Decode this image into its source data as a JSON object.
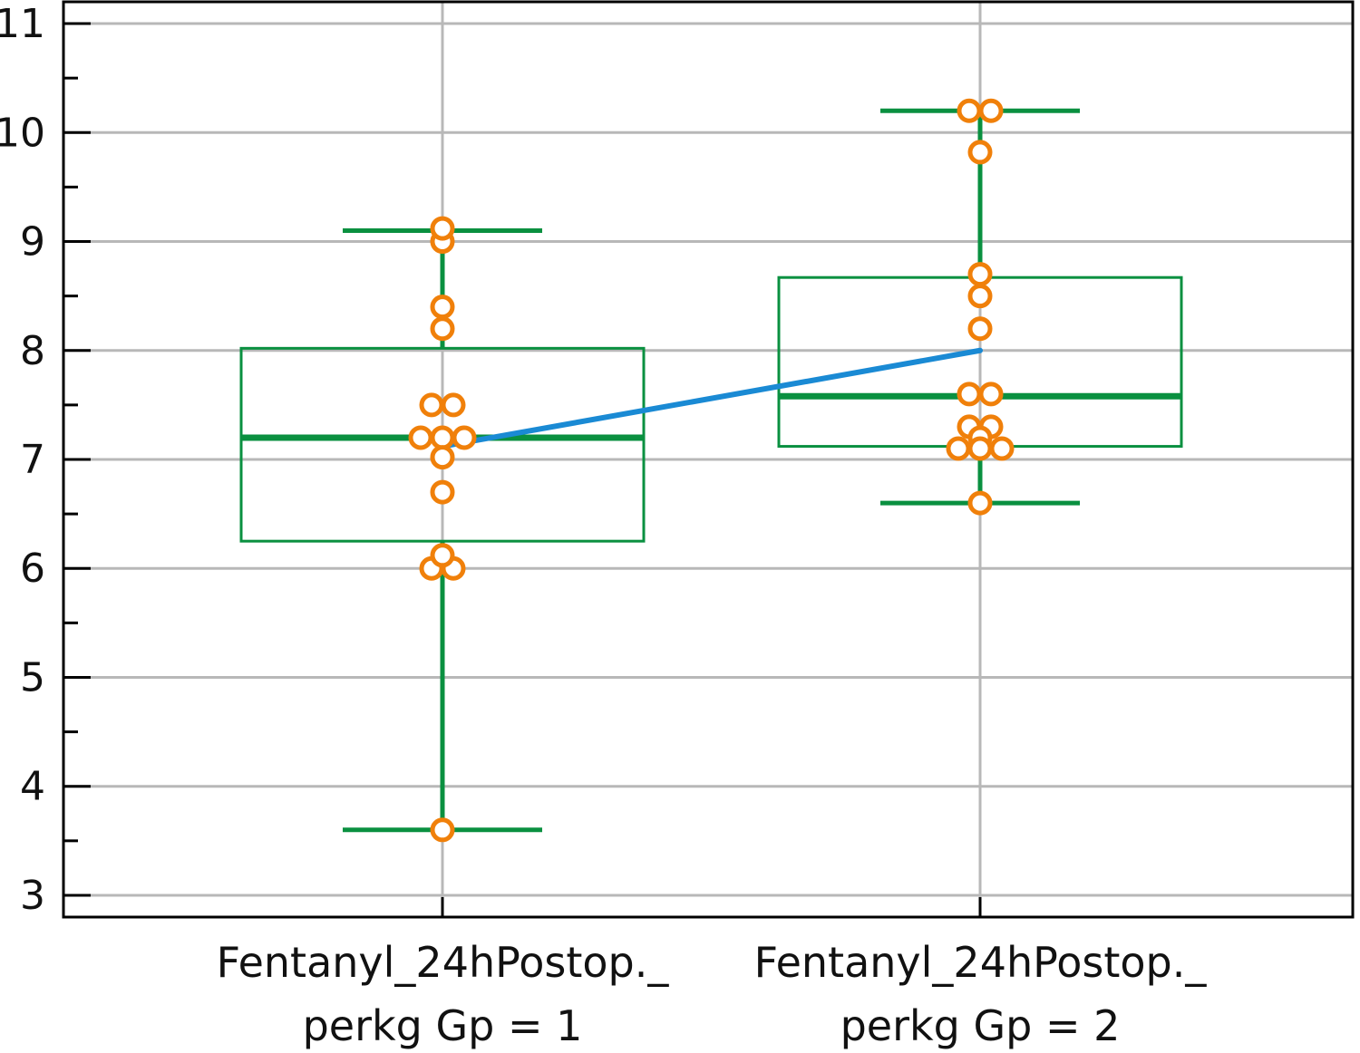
{
  "chart_data": {
    "type": "box",
    "title": "",
    "xlabel": "",
    "ylabel": "",
    "ylim": [
      2.8,
      11.2
    ],
    "yticks": [
      3,
      4,
      5,
      6,
      7,
      8,
      9,
      10,
      11
    ],
    "grid": true,
    "categories": [
      {
        "line1": "Fentanyl_24hPostop._",
        "line2": "perkg  Gp = 1"
      },
      {
        "line1": "Fentanyl_24hPostop._",
        "line2": "perkg  Gp = 2"
      }
    ],
    "boxes": [
      {
        "whisker_low": 3.6,
        "q1": 6.25,
        "median": 7.2,
        "q3": 8.02,
        "whisker_high": 9.1
      },
      {
        "whisker_low": 6.6,
        "q1": 7.12,
        "median": 7.58,
        "q3": 8.67,
        "whisker_high": 10.2
      }
    ],
    "points": [
      [
        9.0,
        9.12,
        8.4,
        8.2,
        7.5,
        7.5,
        7.2,
        7.2,
        7.2,
        7.02,
        6.7,
        6.0,
        6.0,
        6.12,
        3.6
      ],
      [
        10.2,
        10.2,
        9.82,
        8.7,
        8.5,
        8.2,
        7.6,
        7.6,
        7.3,
        7.3,
        7.2,
        7.1,
        7.1,
        7.1,
        6.6
      ]
    ],
    "mean_line": [
      7.12,
      8.0
    ],
    "colors": {
      "box": "#0a9040",
      "points": "#f0800a",
      "mean_line": "#1a8ad4",
      "grid": "#b8b8b8",
      "axis": "#000000"
    }
  }
}
